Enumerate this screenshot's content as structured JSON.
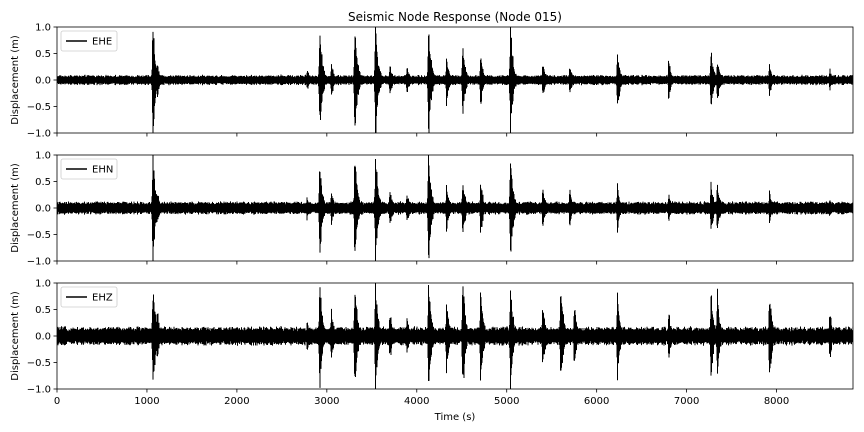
{
  "chart_data": {
    "type": "line",
    "title": "Seismic Node Response (Node 015)",
    "xlabel": "Time (s)",
    "xlim": [
      0,
      8850
    ],
    "xticks": [
      0,
      1000,
      2000,
      3000,
      4000,
      5000,
      6000,
      7000,
      8000
    ],
    "xtick_labels": [
      "0",
      "1000",
      "2000",
      "3000",
      "4000",
      "5000",
      "6000",
      "7000",
      "8000"
    ],
    "grid": false,
    "line_color": "#000000",
    "panels": [
      {
        "legend": "EHE",
        "legend_position": "top-left",
        "ylabel": "Displacement (m)",
        "ylim": [
          -1.0,
          1.0
        ],
        "yticks": [
          -1.0,
          -0.5,
          0.0,
          0.5,
          1.0
        ],
        "ytick_labels": [
          "−1.0",
          "−0.5",
          "0.0",
          "0.5",
          "1.0"
        ],
        "noise_level": 0.07,
        "events": [
          {
            "t": 1065,
            "amp": 1.0
          },
          {
            "t": 1110,
            "amp": 0.35
          },
          {
            "t": 2490,
            "amp": 0.12
          },
          {
            "t": 2780,
            "amp": 0.2
          },
          {
            "t": 2920,
            "amp": 1.0
          },
          {
            "t": 3050,
            "amp": 0.3
          },
          {
            "t": 3310,
            "amp": 1.0
          },
          {
            "t": 3540,
            "amp": 1.0
          },
          {
            "t": 3700,
            "amp": 0.3
          },
          {
            "t": 3890,
            "amp": 0.25
          },
          {
            "t": 4130,
            "amp": 1.0
          },
          {
            "t": 4330,
            "amp": 0.4
          },
          {
            "t": 4510,
            "amp": 0.62
          },
          {
            "t": 4710,
            "amp": 0.45
          },
          {
            "t": 5040,
            "amp": 0.95
          },
          {
            "t": 5400,
            "amp": 0.3
          },
          {
            "t": 5700,
            "amp": 0.25
          },
          {
            "t": 6230,
            "amp": 0.55
          },
          {
            "t": 6800,
            "amp": 0.35
          },
          {
            "t": 7270,
            "amp": 0.55
          },
          {
            "t": 7340,
            "amp": 0.4
          },
          {
            "t": 7920,
            "amp": 0.3
          },
          {
            "t": 8590,
            "amp": 0.2
          }
        ]
      },
      {
        "legend": "EHN",
        "legend_position": "top-left",
        "ylabel": "Displacement (m)",
        "ylim": [
          -1.0,
          1.0
        ],
        "yticks": [
          -1.0,
          -0.5,
          0.0,
          0.5,
          1.0
        ],
        "ytick_labels": [
          "−1.0",
          "−0.5",
          "0.0",
          "0.5",
          "1.0"
        ],
        "noise_level": 0.09,
        "events": [
          {
            "t": 1065,
            "amp": 1.0
          },
          {
            "t": 1110,
            "amp": 0.35
          },
          {
            "t": 2490,
            "amp": 0.12
          },
          {
            "t": 2780,
            "amp": 0.2
          },
          {
            "t": 2920,
            "amp": 0.9
          },
          {
            "t": 3050,
            "amp": 0.3
          },
          {
            "t": 3310,
            "amp": 1.0
          },
          {
            "t": 3540,
            "amp": 1.0
          },
          {
            "t": 3700,
            "amp": 0.35
          },
          {
            "t": 3890,
            "amp": 0.3
          },
          {
            "t": 4130,
            "amp": 1.0
          },
          {
            "t": 4330,
            "amp": 0.45
          },
          {
            "t": 4510,
            "amp": 0.55
          },
          {
            "t": 4710,
            "amp": 0.5
          },
          {
            "t": 5040,
            "amp": 1.0
          },
          {
            "t": 5400,
            "amp": 0.35
          },
          {
            "t": 5700,
            "amp": 0.35
          },
          {
            "t": 6230,
            "amp": 0.4
          },
          {
            "t": 6800,
            "amp": 0.25
          },
          {
            "t": 7270,
            "amp": 0.5
          },
          {
            "t": 7340,
            "amp": 0.45
          },
          {
            "t": 7920,
            "amp": 0.3
          },
          {
            "t": 8590,
            "amp": 0.15
          }
        ]
      },
      {
        "legend": "EHZ",
        "legend_position": "top-left",
        "ylabel": "Displacement (m)",
        "ylim": [
          -1.0,
          1.0
        ],
        "yticks": [
          -1.0,
          -0.5,
          0.0,
          0.5,
          1.0
        ],
        "ytick_labels": [
          "−1.0",
          "−0.5",
          "0.0",
          "0.5",
          "1.0"
        ],
        "noise_level": 0.13,
        "events": [
          {
            "t": 1065,
            "amp": 1.0
          },
          {
            "t": 1110,
            "amp": 0.5
          },
          {
            "t": 2490,
            "amp": 0.2
          },
          {
            "t": 2780,
            "amp": 0.25
          },
          {
            "t": 2920,
            "amp": 1.0
          },
          {
            "t": 3050,
            "amp": 0.45
          },
          {
            "t": 3310,
            "amp": 1.0
          },
          {
            "t": 3540,
            "amp": 1.0
          },
          {
            "t": 3700,
            "amp": 0.45
          },
          {
            "t": 3890,
            "amp": 0.35
          },
          {
            "t": 4130,
            "amp": 1.0
          },
          {
            "t": 4330,
            "amp": 0.6
          },
          {
            "t": 4510,
            "amp": 1.0
          },
          {
            "t": 4710,
            "amp": 0.9
          },
          {
            "t": 5040,
            "amp": 1.0
          },
          {
            "t": 5400,
            "amp": 0.6
          },
          {
            "t": 5600,
            "amp": 0.95
          },
          {
            "t": 5750,
            "amp": 0.55
          },
          {
            "t": 6230,
            "amp": 0.75
          },
          {
            "t": 6800,
            "amp": 0.45
          },
          {
            "t": 7270,
            "amp": 0.8
          },
          {
            "t": 7340,
            "amp": 0.75
          },
          {
            "t": 7920,
            "amp": 0.75
          },
          {
            "t": 8590,
            "amp": 0.45
          }
        ]
      }
    ]
  }
}
